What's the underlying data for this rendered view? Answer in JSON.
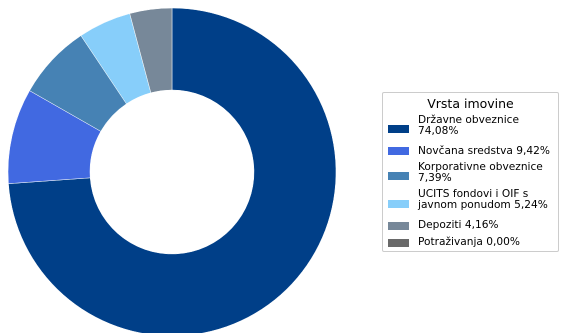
{
  "chart_data": {
    "type": "pie",
    "donut": true,
    "legend_title": "Vrsta imovine",
    "legend_position": "right",
    "slices": [
      {
        "label": "Državne obveznice 74,08%",
        "value": 74.08,
        "color": "#003f88"
      },
      {
        "label": "Novčana sredstva 9,42%",
        "value": 9.42,
        "color": "#4169e1"
      },
      {
        "label": "Korporativne obveznice 7,39%",
        "value": 7.39,
        "color": "#4682b4"
      },
      {
        "label": "UCITS fondovi i OIF s javnom ponudom 5,24%",
        "value": 5.24,
        "color": "#87cefa"
      },
      {
        "label": "Depoziti 4,16%",
        "value": 4.16,
        "color": "#778899"
      },
      {
        "label": "Potraživanja 0,00%",
        "value": 0.0,
        "color": "#696969"
      }
    ]
  }
}
